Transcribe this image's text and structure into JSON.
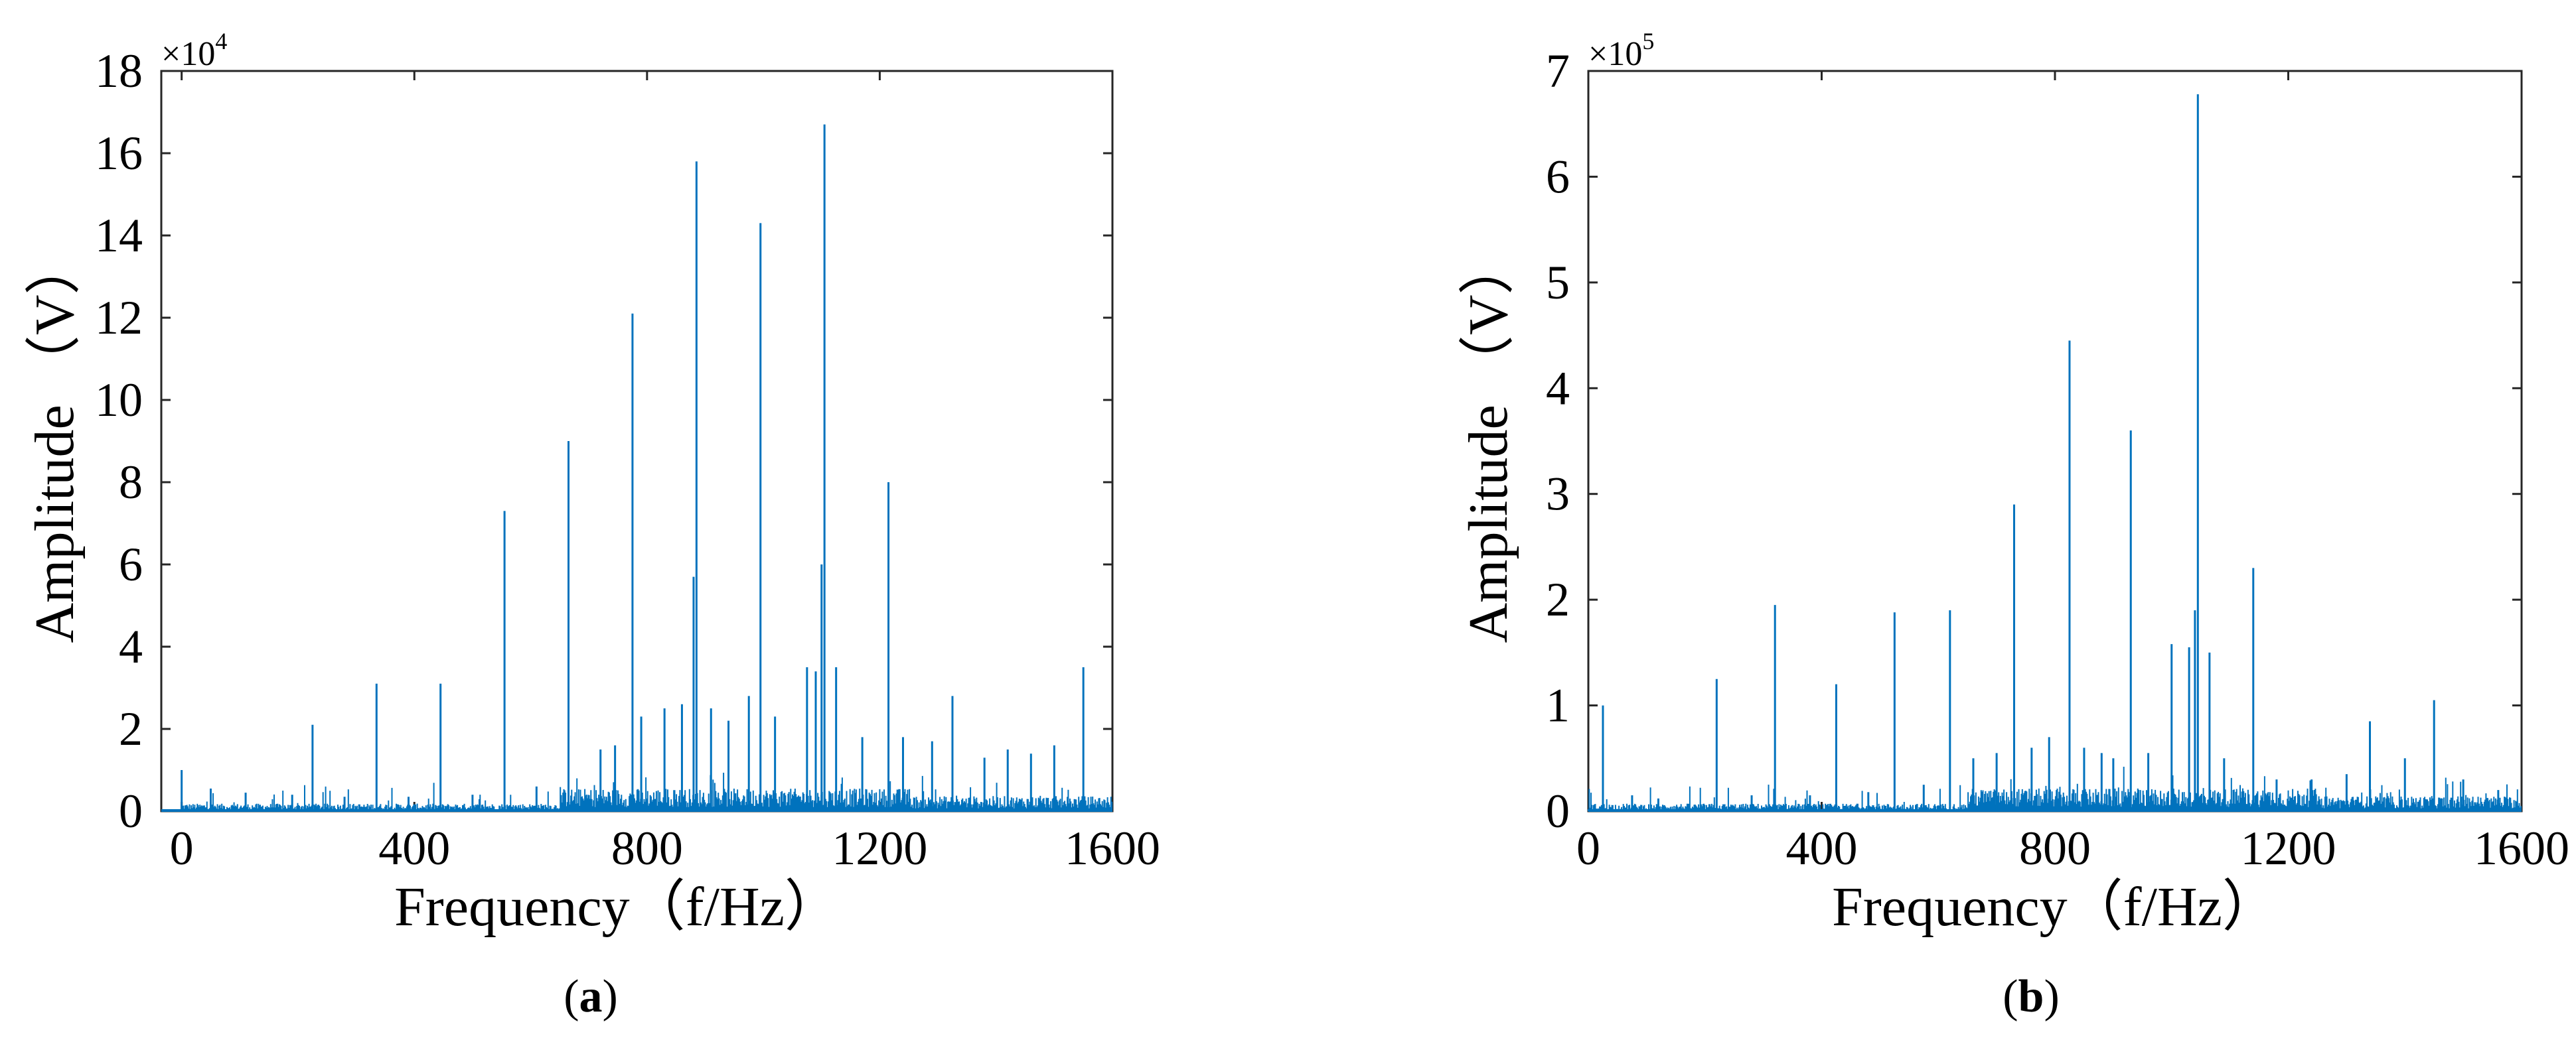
{
  "series_color": "#0072bd",
  "chart_data": [
    {
      "type": "line",
      "panel": "(a)",
      "panel_letter": "a",
      "xlabel": "Frequency（f/Hz）",
      "ylabel": "Amplitude （V）",
      "exponent_base": "×10",
      "exponent_power": "4",
      "xlim": [
        -35,
        1600
      ],
      "ylim": [
        0,
        180000
      ],
      "xticks": [
        0,
        400,
        800,
        1200,
        1600
      ],
      "xtick_labels": [
        "0",
        "400",
        "800",
        "1200",
        "1600"
      ],
      "yticks": [
        0,
        20000,
        40000,
        60000,
        80000,
        100000,
        120000,
        140000,
        160000,
        180000
      ],
      "ytick_labels": [
        "0",
        "2",
        "4",
        "6",
        "8",
        "10",
        "12",
        "14",
        "16",
        "18"
      ],
      "peaks": [
        {
          "x": 0,
          "y": 10000
        },
        {
          "x": 50,
          "y": 5500
        },
        {
          "x": 110,
          "y": 4500
        },
        {
          "x": 190,
          "y": 4000
        },
        {
          "x": 225,
          "y": 21000
        },
        {
          "x": 280,
          "y": 3500
        },
        {
          "x": 335,
          "y": 31000
        },
        {
          "x": 390,
          "y": 3500
        },
        {
          "x": 445,
          "y": 31000
        },
        {
          "x": 500,
          "y": 4000
        },
        {
          "x": 555,
          "y": 73000
        },
        {
          "x": 610,
          "y": 6000
        },
        {
          "x": 665,
          "y": 90000
        },
        {
          "x": 720,
          "y": 15000
        },
        {
          "x": 745,
          "y": 16000
        },
        {
          "x": 775,
          "y": 121000
        },
        {
          "x": 790,
          "y": 23000
        },
        {
          "x": 830,
          "y": 25000
        },
        {
          "x": 860,
          "y": 26000
        },
        {
          "x": 885,
          "y": 158000
        },
        {
          "x": 880,
          "y": 57000
        },
        {
          "x": 910,
          "y": 25000
        },
        {
          "x": 940,
          "y": 22000
        },
        {
          "x": 975,
          "y": 28000
        },
        {
          "x": 995,
          "y": 143000
        },
        {
          "x": 1020,
          "y": 23000
        },
        {
          "x": 1075,
          "y": 35000
        },
        {
          "x": 1090,
          "y": 34000
        },
        {
          "x": 1105,
          "y": 167000
        },
        {
          "x": 1100,
          "y": 60000
        },
        {
          "x": 1125,
          "y": 35000
        },
        {
          "x": 1170,
          "y": 18000
        },
        {
          "x": 1215,
          "y": 80000
        },
        {
          "x": 1240,
          "y": 18000
        },
        {
          "x": 1290,
          "y": 17000
        },
        {
          "x": 1325,
          "y": 28000
        },
        {
          "x": 1380,
          "y": 13000
        },
        {
          "x": 1420,
          "y": 15000
        },
        {
          "x": 1460,
          "y": 14000
        },
        {
          "x": 1500,
          "y": 16000
        },
        {
          "x": 1550,
          "y": 35000
        }
      ]
    },
    {
      "type": "line",
      "panel": "(b)",
      "panel_letter": "b",
      "xlabel": "Frequency（f/Hz）",
      "ylabel": "Amplitude （V）",
      "exponent_base": "×10",
      "exponent_power": "5",
      "xlim": [
        0,
        1600
      ],
      "ylim": [
        0,
        700000
      ],
      "xticks": [
        0,
        400,
        800,
        1200,
        1600
      ],
      "xtick_labels": [
        "0",
        "400",
        "800",
        "1200",
        "1600"
      ],
      "yticks": [
        0,
        100000,
        200000,
        300000,
        400000,
        500000,
        600000,
        700000
      ],
      "ytick_labels": [
        "0",
        "1",
        "2",
        "3",
        "4",
        "5",
        "6",
        "7"
      ],
      "peaks": [
        {
          "x": 25,
          "y": 100000
        },
        {
          "x": 75,
          "y": 15000
        },
        {
          "x": 120,
          "y": 12000
        },
        {
          "x": 220,
          "y": 125000
        },
        {
          "x": 280,
          "y": 15000
        },
        {
          "x": 320,
          "y": 195000
        },
        {
          "x": 380,
          "y": 15000
        },
        {
          "x": 425,
          "y": 120000
        },
        {
          "x": 480,
          "y": 18000
        },
        {
          "x": 525,
          "y": 188000
        },
        {
          "x": 575,
          "y": 25000
        },
        {
          "x": 620,
          "y": 190000
        },
        {
          "x": 660,
          "y": 50000
        },
        {
          "x": 700,
          "y": 55000
        },
        {
          "x": 730,
          "y": 290000
        },
        {
          "x": 760,
          "y": 60000
        },
        {
          "x": 790,
          "y": 70000
        },
        {
          "x": 825,
          "y": 445000
        },
        {
          "x": 850,
          "y": 60000
        },
        {
          "x": 880,
          "y": 55000
        },
        {
          "x": 900,
          "y": 50000
        },
        {
          "x": 930,
          "y": 360000
        },
        {
          "x": 960,
          "y": 55000
        },
        {
          "x": 1000,
          "y": 158000
        },
        {
          "x": 1030,
          "y": 155000
        },
        {
          "x": 1045,
          "y": 678000
        },
        {
          "x": 1040,
          "y": 190000
        },
        {
          "x": 1065,
          "y": 150000
        },
        {
          "x": 1090,
          "y": 50000
        },
        {
          "x": 1140,
          "y": 230000
        },
        {
          "x": 1180,
          "y": 30000
        },
        {
          "x": 1240,
          "y": 30000
        },
        {
          "x": 1300,
          "y": 35000
        },
        {
          "x": 1340,
          "y": 85000
        },
        {
          "x": 1400,
          "y": 50000
        },
        {
          "x": 1450,
          "y": 105000
        },
        {
          "x": 1500,
          "y": 30000
        },
        {
          "x": 1560,
          "y": 20000
        }
      ]
    }
  ]
}
